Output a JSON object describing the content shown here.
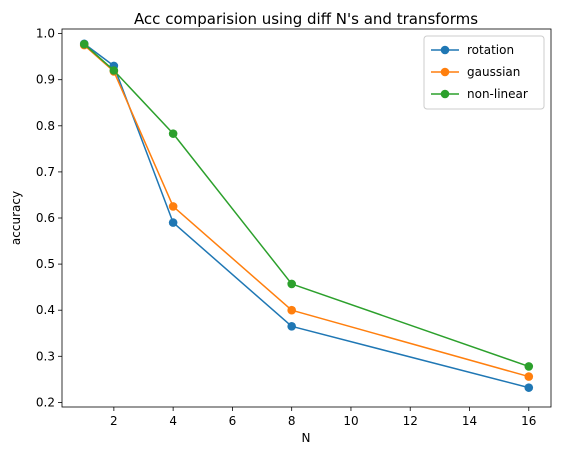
{
  "chart_data": {
    "type": "line",
    "title": "Acc comparision using diff N's and transforms",
    "xlabel": "N",
    "ylabel": "accuracy",
    "x": [
      1,
      2,
      4,
      8,
      16
    ],
    "xlim": [
      0.25,
      16.75
    ],
    "ylim": [
      0.19,
      1.01
    ],
    "xticks": [
      2,
      4,
      6,
      8,
      10,
      12,
      14,
      16
    ],
    "yticks": [
      0.2,
      0.3,
      0.4,
      0.5,
      0.6,
      0.7,
      0.8,
      0.9,
      1.0
    ],
    "ytick_labels": [
      "0.2",
      "0.3",
      "0.4",
      "0.5",
      "0.6",
      "0.7",
      "0.8",
      "0.9",
      "1.0"
    ],
    "grid": false,
    "legend_position": "top-right",
    "series": [
      {
        "name": "rotation",
        "color": "#1f77b4",
        "values": [
          0.978,
          0.93,
          0.59,
          0.365,
          0.232
        ]
      },
      {
        "name": "gaussian",
        "color": "#ff7f0e",
        "values": [
          0.975,
          0.918,
          0.625,
          0.4,
          0.256
        ]
      },
      {
        "name": "non-linear",
        "color": "#2ca02c",
        "values": [
          0.977,
          0.92,
          0.783,
          0.457,
          0.278
        ]
      }
    ]
  }
}
